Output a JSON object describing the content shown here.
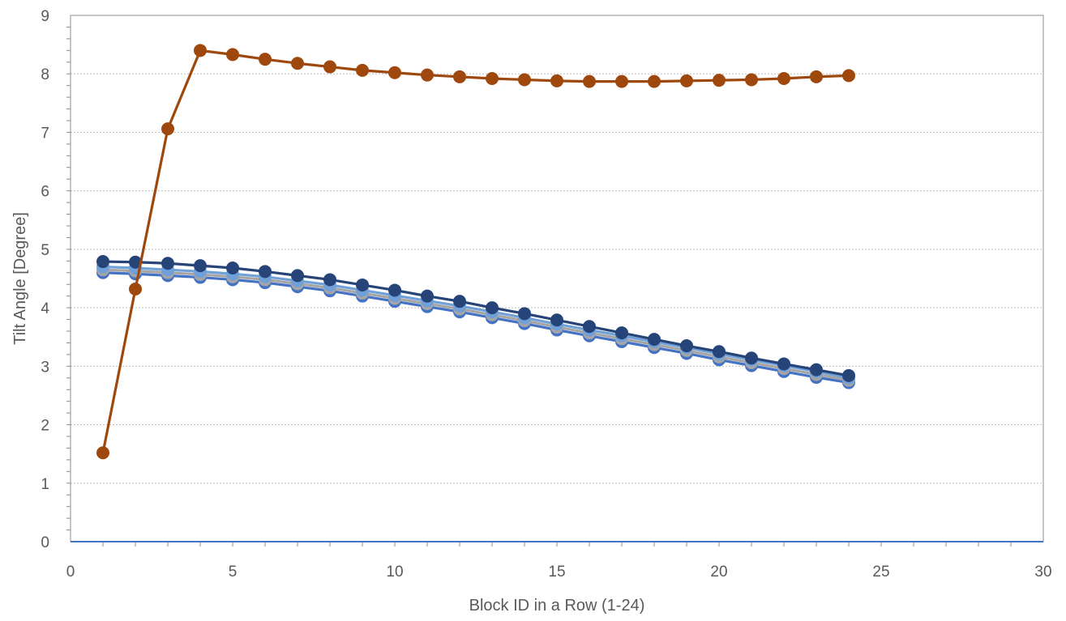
{
  "chart_data": {
    "type": "scatter",
    "xlabel": "Block ID in a Row (1-24)",
    "ylabel": "Tilt Angle [Degree]",
    "xlim": [
      0,
      30
    ],
    "ylim": [
      0,
      9
    ],
    "x_ticks": [
      0,
      5,
      10,
      15,
      20,
      25,
      30
    ],
    "y_ticks": [
      0,
      1,
      2,
      3,
      4,
      5,
      6,
      7,
      8,
      9
    ],
    "grid": "horizontal-dotted",
    "legend": "none",
    "x": [
      1,
      2,
      3,
      4,
      5,
      6,
      7,
      8,
      9,
      10,
      11,
      12,
      13,
      14,
      15,
      16,
      17,
      18,
      19,
      20,
      21,
      22,
      23,
      24
    ],
    "series": [
      {
        "color": "#4472C4",
        "values": [
          4.6,
          4.58,
          4.55,
          4.52,
          4.48,
          4.43,
          4.36,
          4.29,
          4.2,
          4.11,
          4.02,
          3.93,
          3.83,
          3.73,
          3.62,
          3.52,
          3.42,
          3.32,
          3.22,
          3.11,
          3.01,
          2.91,
          2.81,
          2.72
        ]
      },
      {
        "color": "#A5A5A5",
        "values": [
          4.65,
          4.63,
          4.6,
          4.57,
          4.53,
          4.48,
          4.41,
          4.34,
          4.25,
          4.16,
          4.07,
          3.98,
          3.88,
          3.78,
          3.67,
          3.57,
          3.47,
          3.37,
          3.27,
          3.16,
          3.06,
          2.96,
          2.86,
          2.76
        ]
      },
      {
        "color": "#70A0D8",
        "values": [
          4.7,
          4.68,
          4.65,
          4.62,
          4.58,
          4.53,
          4.46,
          4.39,
          4.3,
          4.21,
          4.12,
          4.03,
          3.93,
          3.83,
          3.72,
          3.62,
          3.52,
          3.42,
          3.32,
          3.21,
          3.11,
          3.01,
          2.91,
          2.8
        ]
      },
      {
        "color": "#264478",
        "values": [
          4.79,
          4.78,
          4.76,
          4.72,
          4.68,
          4.62,
          4.55,
          4.48,
          4.39,
          4.3,
          4.2,
          4.11,
          4.0,
          3.9,
          3.79,
          3.68,
          3.57,
          3.46,
          3.35,
          3.25,
          3.14,
          3.04,
          2.94,
          2.84
        ]
      },
      {
        "color": "#9E480E",
        "values": [
          1.52,
          4.32,
          7.06,
          8.4,
          8.33,
          8.25,
          8.18,
          8.12,
          8.06,
          8.02,
          7.98,
          7.95,
          7.92,
          7.9,
          7.88,
          7.87,
          7.87,
          7.87,
          7.88,
          7.89,
          7.9,
          7.92,
          7.95,
          7.97
        ]
      }
    ]
  }
}
